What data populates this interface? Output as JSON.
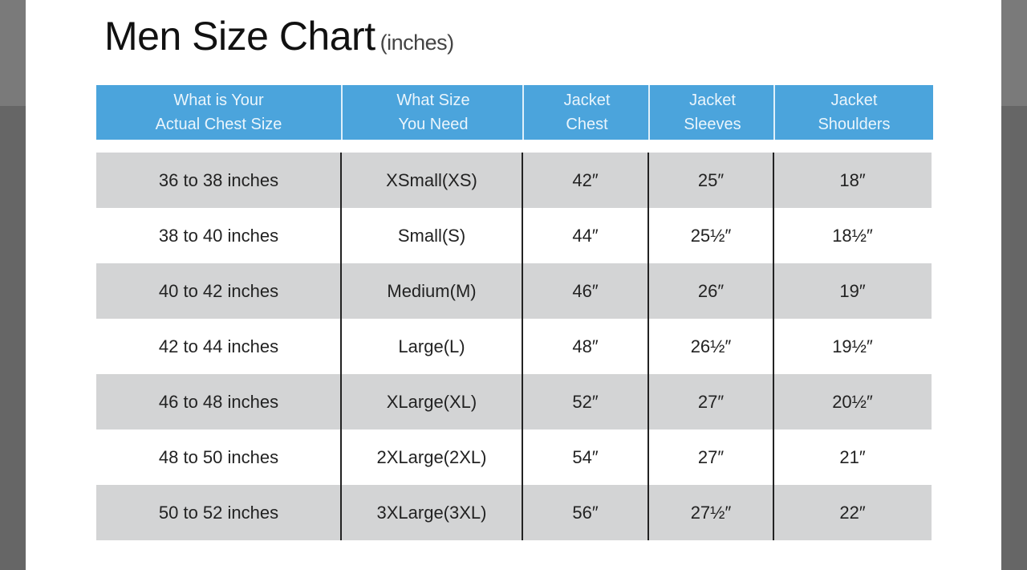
{
  "title": "Men Size Chart",
  "unit": "(inches)",
  "colors": {
    "header_bg": "#4ba4dc",
    "row_shade": "#d3d4d5"
  },
  "headers": [
    "What is Your\nActual Chest Size",
    "What Size\nYou Need",
    "Jacket\nChest",
    "Jacket\nSleeves",
    "Jacket\nShoulders"
  ],
  "rows": [
    [
      "36 to 38 inches",
      "XSmall(XS)",
      "42″",
      "25″",
      "18″"
    ],
    [
      "38 to 40 inches",
      "Small(S)",
      "44″",
      "25½″",
      "18½″"
    ],
    [
      "40 to 42 inches",
      "Medium(M)",
      "46″",
      "26″",
      "19″"
    ],
    [
      "42 to 44 inches",
      "Large(L)",
      "48″",
      "26½″",
      "19½″"
    ],
    [
      "46 to 48 inches",
      "XLarge(XL)",
      "52″",
      "27″",
      "20½″"
    ],
    [
      "48 to 50 inches",
      "2XLarge(2XL)",
      "54″",
      "27″",
      "21″"
    ],
    [
      "50 to 52 inches",
      "3XLarge(3XL)",
      "56″",
      "27½″",
      "22″"
    ]
  ]
}
